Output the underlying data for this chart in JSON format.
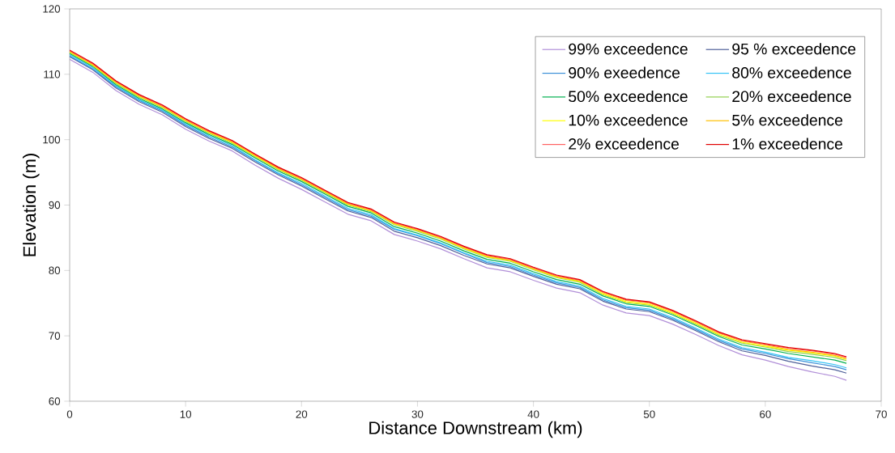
{
  "chart_data": {
    "type": "line",
    "xlabel": "Distance Downstream (km)",
    "ylabel": "Elevation (m)",
    "x": [
      0,
      2,
      4,
      6,
      8,
      10,
      12,
      14,
      16,
      18,
      20,
      22,
      24,
      26,
      28,
      30,
      32,
      34,
      36,
      38,
      40,
      42,
      44,
      46,
      48,
      50,
      52,
      54,
      56,
      58,
      60,
      62,
      64,
      66,
      67
    ],
    "xlim": [
      0,
      70
    ],
    "xticks": [
      0,
      10,
      20,
      30,
      40,
      50,
      60,
      70
    ],
    "ylim": [
      60,
      120
    ],
    "yticks": [
      60,
      70,
      80,
      90,
      100,
      110,
      120
    ],
    "grid": false,
    "legend": "top right",
    "marker": "none",
    "line_style": "solid",
    "series": [
      {
        "name": "99% exceedence",
        "color": "#b18fd8",
        "values": [
          112.3,
          110.3,
          107.5,
          105.4,
          103.8,
          101.6,
          99.8,
          98.3,
          96.1,
          94.1,
          92.4,
          90.5,
          88.6,
          87.6,
          85.5,
          84.5,
          83.3,
          81.8,
          80.4,
          79.8,
          78.5,
          77.3,
          76.6,
          74.7,
          73.5,
          73.1,
          71.8,
          70.2,
          68.5,
          67.1,
          66.3,
          65.3,
          64.5,
          63.8,
          63.2
        ]
      },
      {
        "name": "95 % exceedence",
        "color": "#4f5f99",
        "values": [
          112.7,
          110.7,
          107.9,
          105.8,
          104.2,
          102.0,
          100.2,
          98.7,
          96.6,
          94.6,
          92.9,
          91.0,
          89.1,
          88.1,
          86.0,
          85.0,
          83.8,
          82.3,
          81.0,
          80.4,
          79.1,
          77.9,
          77.2,
          75.3,
          74.1,
          73.7,
          72.4,
          70.8,
          69.1,
          67.7,
          67.0,
          66.1,
          65.4,
          64.8,
          64.3
        ]
      },
      {
        "name": "90% exeedence",
        "color": "#3a8fd8",
        "values": [
          112.8,
          110.8,
          108.1,
          106.0,
          104.4,
          102.2,
          100.4,
          98.9,
          96.8,
          94.8,
          93.1,
          91.2,
          89.3,
          88.3,
          86.3,
          85.3,
          84.1,
          82.6,
          81.2,
          80.6,
          79.3,
          78.1,
          77.4,
          75.5,
          74.3,
          73.9,
          72.6,
          71.0,
          69.3,
          68.0,
          67.3,
          66.5,
          65.9,
          65.3,
          64.8
        ]
      },
      {
        "name": "80% exceedence",
        "color": "#33c3f5",
        "values": [
          113.0,
          111.0,
          108.2,
          106.1,
          104.5,
          102.4,
          100.6,
          99.1,
          96.9,
          94.9,
          93.3,
          91.4,
          89.5,
          88.5,
          86.4,
          85.4,
          84.2,
          82.7,
          81.4,
          80.8,
          79.5,
          78.3,
          77.6,
          75.7,
          74.5,
          74.1,
          72.8,
          71.2,
          69.5,
          68.2,
          67.5,
          66.7,
          66.2,
          65.6,
          65.1
        ]
      },
      {
        "name": "50% exceedence",
        "color": "#00b050",
        "values": [
          113.2,
          111.2,
          108.4,
          106.3,
          104.7,
          102.6,
          100.8,
          99.3,
          97.2,
          95.2,
          93.6,
          91.7,
          89.8,
          88.8,
          86.7,
          85.7,
          84.5,
          83.0,
          81.7,
          81.1,
          79.8,
          78.6,
          77.9,
          76.1,
          74.9,
          74.5,
          73.2,
          71.6,
          69.9,
          68.6,
          68.0,
          67.3,
          66.8,
          66.3,
          65.8
        ]
      },
      {
        "name": "20% exceedence",
        "color": "#92d050",
        "values": [
          113.3,
          111.3,
          108.6,
          106.5,
          104.9,
          102.8,
          101.0,
          99.5,
          97.4,
          95.4,
          93.8,
          91.9,
          90.0,
          89.0,
          87.0,
          86.0,
          84.8,
          83.3,
          82.0,
          81.4,
          80.1,
          78.9,
          78.2,
          76.3,
          75.1,
          74.7,
          73.4,
          71.8,
          70.1,
          68.9,
          68.3,
          67.6,
          67.2,
          66.7,
          66.2
        ]
      },
      {
        "name": "10% exceedence",
        "color": "#ffff00",
        "values": [
          113.4,
          111.4,
          108.7,
          106.6,
          105.0,
          102.9,
          101.1,
          99.6,
          97.5,
          95.5,
          93.9,
          92.0,
          90.1,
          89.1,
          87.1,
          86.1,
          84.9,
          83.4,
          82.1,
          81.5,
          80.2,
          79.0,
          78.3,
          76.4,
          75.2,
          74.8,
          73.5,
          71.9,
          70.2,
          69.0,
          68.4,
          67.8,
          67.4,
          66.9,
          66.4
        ]
      },
      {
        "name": "5% exceedence",
        "color": "#ffc000",
        "values": [
          113.5,
          111.5,
          108.8,
          106.7,
          105.1,
          103.0,
          101.2,
          99.7,
          97.6,
          95.6,
          94.0,
          92.1,
          90.2,
          89.2,
          87.2,
          86.2,
          85.0,
          83.5,
          82.2,
          81.6,
          80.3,
          79.1,
          78.4,
          76.6,
          75.4,
          75.0,
          73.7,
          72.1,
          70.4,
          69.2,
          68.6,
          67.9,
          67.5,
          67.0,
          66.5
        ]
      },
      {
        "name": "2% exceedence",
        "color": "#ff6060",
        "values": [
          113.6,
          111.6,
          108.9,
          106.8,
          105.2,
          103.1,
          101.3,
          99.8,
          97.7,
          95.7,
          94.1,
          92.2,
          90.3,
          89.3,
          87.3,
          86.3,
          85.1,
          83.6,
          82.3,
          81.7,
          80.4,
          79.2,
          78.5,
          76.7,
          75.5,
          75.1,
          73.8,
          72.2,
          70.5,
          69.3,
          68.7,
          68.1,
          67.7,
          67.2,
          66.7
        ]
      },
      {
        "name": "1% exceedence",
        "color": "#e00000",
        "values": [
          113.7,
          111.7,
          109.0,
          106.9,
          105.3,
          103.2,
          101.4,
          99.9,
          97.8,
          95.8,
          94.2,
          92.3,
          90.4,
          89.4,
          87.4,
          86.4,
          85.2,
          83.7,
          82.4,
          81.8,
          80.5,
          79.3,
          78.6,
          76.8,
          75.6,
          75.2,
          73.9,
          72.3,
          70.6,
          69.4,
          68.8,
          68.2,
          67.8,
          67.3,
          66.8
        ]
      }
    ]
  }
}
